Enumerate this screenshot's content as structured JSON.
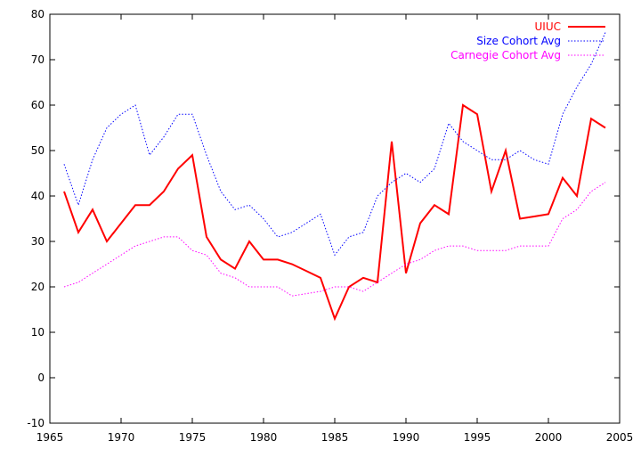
{
  "chart_data": {
    "type": "line",
    "xlim": [
      1965,
      2005
    ],
    "ylim": [
      -10,
      80
    ],
    "x_ticks": [
      1965,
      1970,
      1975,
      1980,
      1985,
      1990,
      1995,
      2000,
      2005
    ],
    "y_ticks": [
      -10,
      0,
      10,
      20,
      30,
      40,
      50,
      60,
      70,
      80
    ],
    "grid": false,
    "legend_position": "top-right",
    "series": [
      {
        "name": "UIUC",
        "color": "#ff0000",
        "style": "solid",
        "x": [
          1966,
          1967,
          1968,
          1969,
          1970,
          1971,
          1972,
          1973,
          1974,
          1975,
          1976,
          1977,
          1978,
          1979,
          1980,
          1981,
          1982,
          1983,
          1984,
          1985,
          1986,
          1987,
          1988,
          1989,
          1990,
          1991,
          1992,
          1993,
          1994,
          1995,
          1996,
          1997,
          1998,
          1999,
          2000,
          2001,
          2002,
          2003,
          2004
        ],
        "values": [
          41,
          32,
          37,
          30,
          34,
          38,
          38,
          41,
          46,
          49,
          31,
          26,
          24,
          30,
          26,
          26,
          25,
          23.5,
          22,
          13,
          20,
          22,
          21,
          52,
          23,
          34,
          38,
          36,
          60,
          58,
          41,
          50,
          35,
          35.5,
          36,
          44,
          40,
          57,
          55
        ]
      },
      {
        "name": "Size Cohort Avg",
        "color": "#0000ff",
        "style": "dotted",
        "x": [
          1966,
          1967,
          1968,
          1969,
          1970,
          1971,
          1972,
          1973,
          1974,
          1975,
          1976,
          1977,
          1978,
          1979,
          1980,
          1981,
          1982,
          1983,
          1984,
          1985,
          1986,
          1987,
          1988,
          1989,
          1990,
          1991,
          1992,
          1993,
          1994,
          1995,
          1996,
          1997,
          1998,
          1999,
          2000,
          2001,
          2002,
          2003,
          2004
        ],
        "values": [
          47,
          38,
          48,
          55,
          58,
          60,
          49,
          53,
          58,
          58,
          49,
          41,
          37,
          38,
          35,
          31,
          32,
          34,
          36,
          27,
          31,
          32,
          40,
          43,
          45,
          43,
          46,
          56,
          52,
          50,
          48,
          48,
          50,
          48,
          47,
          58,
          64,
          69,
          76
        ]
      },
      {
        "name": "Carnegie Cohort Avg",
        "color": "#ff00ff",
        "style": "dotted",
        "x": [
          1966,
          1967,
          1968,
          1969,
          1970,
          1971,
          1972,
          1973,
          1974,
          1975,
          1976,
          1977,
          1978,
          1979,
          1980,
          1981,
          1982,
          1983,
          1984,
          1985,
          1986,
          1987,
          1988,
          1989,
          1990,
          1991,
          1992,
          1993,
          1994,
          1995,
          1996,
          1997,
          1998,
          1999,
          2000,
          2001,
          2002,
          2003,
          2004
        ],
        "values": [
          20,
          21,
          23,
          25,
          27,
          29,
          30,
          31,
          31,
          28,
          27,
          23,
          22,
          20,
          20,
          20,
          18,
          18.5,
          19,
          20,
          20,
          19,
          21,
          23,
          25,
          26,
          28,
          29,
          29,
          28,
          28,
          28,
          29,
          29,
          29,
          35,
          37,
          41,
          43
        ]
      }
    ]
  }
}
